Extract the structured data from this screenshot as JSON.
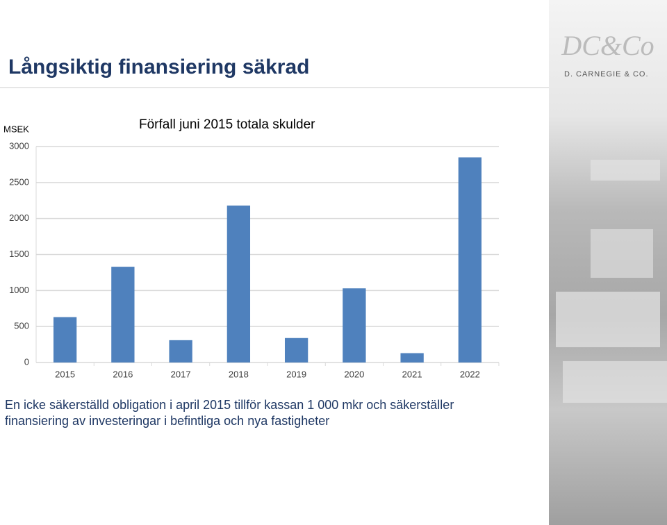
{
  "slide_title": "Långsiktig finansiering säkrad",
  "brand": "D. CARNEGIE & CO.",
  "chart_data": {
    "type": "bar",
    "title": "Förfall juni 2015 totala skulder",
    "y_label": "MSEK",
    "categories": [
      "2015",
      "2016",
      "2017",
      "2018",
      "2019",
      "2020",
      "2021",
      "2022"
    ],
    "values": [
      630,
      1330,
      310,
      2180,
      340,
      1030,
      130,
      2850
    ],
    "color": "#4f81bd",
    "ylim": [
      0,
      3000
    ],
    "yticks": [
      0,
      500,
      1000,
      1500,
      2000,
      2500,
      3000
    ],
    "grid": true
  },
  "body_text": "En icke säkerställd obligation i april 2015 tillför kassan 1 000 mkr och säkerställer finansiering av investeringar i befintliga och nya fastigheter"
}
